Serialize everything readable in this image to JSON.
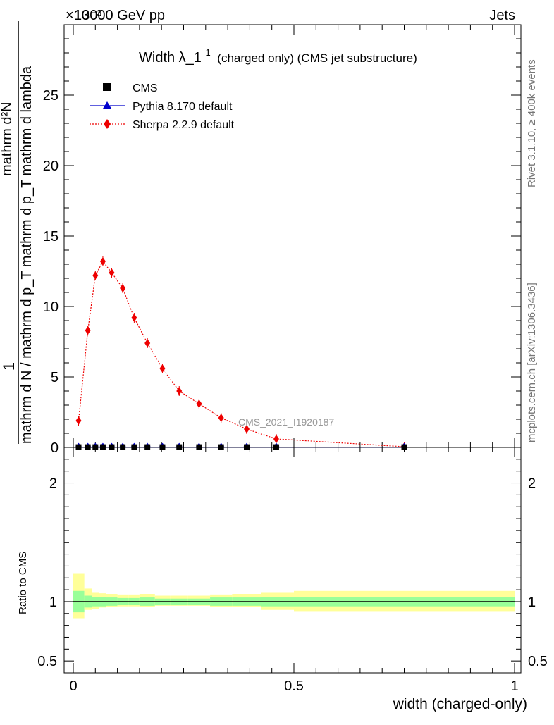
{
  "header": {
    "energy_label": "13000 GeV pp",
    "category_label": "Jets",
    "exponent_label": "×10⁻³"
  },
  "side_labels": {
    "rivet": "Rivet 3.1.10, ≥ 400k events",
    "mcplots": "mcplots.cern.ch [arXiv:1306.3436]"
  },
  "chart_data": [
    {
      "type": "line",
      "title_main": "Width λ_1",
      "title_sup": "1",
      "title_rest": "(charged only) (CMS jet substructure)",
      "ylabel_numerator": "1",
      "ylabel_denominator": "mathrm d N / mathrm d p_T mathrm d p_T mathrm d lambda",
      "ylabel_display_num": "mathrm d²N",
      "xlim": [
        0,
        1
      ],
      "ylim": [
        0,
        30
      ],
      "yticks": [
        0,
        5,
        10,
        15,
        20,
        25
      ],
      "ytick_labels": [
        "0",
        "5",
        "10",
        "15",
        "20",
        "25"
      ],
      "watermark": "CMS_2021_I1920187",
      "legend": {
        "position": "top-left",
        "entries": [
          "CMS",
          "Pythia 8.170 default",
          "Sherpa 2.2.9 default"
        ]
      },
      "series": [
        {
          "name": "CMS",
          "marker": "square",
          "color": "#000000",
          "x": [
            0.012,
            0.033,
            0.05,
            0.067,
            0.087,
            0.112,
            0.138,
            0.168,
            0.202,
            0.24,
            0.285,
            0.335,
            0.393,
            0.46,
            0.75
          ],
          "y": [
            0.02,
            0.02,
            0.02,
            0.02,
            0.02,
            0.02,
            0.02,
            0.02,
            0.02,
            0.02,
            0.02,
            0.02,
            0.02,
            0.02,
            0.02
          ]
        },
        {
          "name": "Pythia 8.170 default",
          "marker": "triangle",
          "color": "#0000cc",
          "x": [
            0.012,
            0.033,
            0.05,
            0.067,
            0.087,
            0.112,
            0.138,
            0.168,
            0.202,
            0.24,
            0.285,
            0.335,
            0.393,
            0.46,
            0.75
          ],
          "y": [
            0.02,
            0.02,
            0.02,
            0.02,
            0.02,
            0.02,
            0.02,
            0.02,
            0.02,
            0.02,
            0.02,
            0.02,
            0.02,
            0.02,
            0.02
          ]
        },
        {
          "name": "Sherpa 2.2.9 default",
          "marker": "diamond",
          "color": "#ee0000",
          "x": [
            0.012,
            0.033,
            0.05,
            0.067,
            0.087,
            0.112,
            0.138,
            0.168,
            0.202,
            0.24,
            0.285,
            0.335,
            0.393,
            0.46,
            0.75
          ],
          "y": [
            1.9,
            8.3,
            12.2,
            13.2,
            12.4,
            11.3,
            9.2,
            7.4,
            5.6,
            4.0,
            3.1,
            2.1,
            1.3,
            0.6,
            0.05
          ]
        }
      ]
    },
    {
      "type": "area",
      "ylabel": "Ratio to CMS",
      "xlabel": "width (charged-only)",
      "xlim": [
        0,
        1
      ],
      "ylim": [
        0.4,
        2.3
      ],
      "yticks": [
        0.5,
        1,
        2
      ],
      "ytick_labels": [
        "0.5",
        "1",
        "2"
      ],
      "xticks": [
        0,
        0.5,
        1
      ],
      "xtick_labels": [
        "0",
        "0.5",
        "1"
      ],
      "reference_line": 1,
      "bins": [
        0,
        0.025,
        0.042,
        0.058,
        0.075,
        0.1,
        0.125,
        0.15,
        0.185,
        0.22,
        0.26,
        0.31,
        0.36,
        0.425,
        0.5,
        1.0
      ],
      "inner_band": [
        [
          0.91,
          1.09
        ],
        [
          0.95,
          1.05
        ],
        [
          0.96,
          1.04
        ],
        [
          0.96,
          1.04
        ],
        [
          0.965,
          1.035
        ],
        [
          0.97,
          1.03
        ],
        [
          0.97,
          1.03
        ],
        [
          0.965,
          1.035
        ],
        [
          0.975,
          1.025
        ],
        [
          0.975,
          1.025
        ],
        [
          0.975,
          1.025
        ],
        [
          0.965,
          1.035
        ],
        [
          0.965,
          1.035
        ],
        [
          0.96,
          1.04
        ],
        [
          0.96,
          1.04
        ]
      ],
      "outer_band": [
        [
          0.86,
          1.24
        ],
        [
          0.93,
          1.11
        ],
        [
          0.94,
          1.08
        ],
        [
          0.95,
          1.07
        ],
        [
          0.955,
          1.065
        ],
        [
          0.96,
          1.06
        ],
        [
          0.96,
          1.06
        ],
        [
          0.955,
          1.065
        ],
        [
          0.965,
          1.05
        ],
        [
          0.965,
          1.05
        ],
        [
          0.965,
          1.05
        ],
        [
          0.955,
          1.06
        ],
        [
          0.955,
          1.065
        ],
        [
          0.93,
          1.08
        ],
        [
          0.92,
          1.09
        ]
      ],
      "band_colors": {
        "outer": "#ffff99",
        "inner": "#99ff99"
      }
    }
  ]
}
